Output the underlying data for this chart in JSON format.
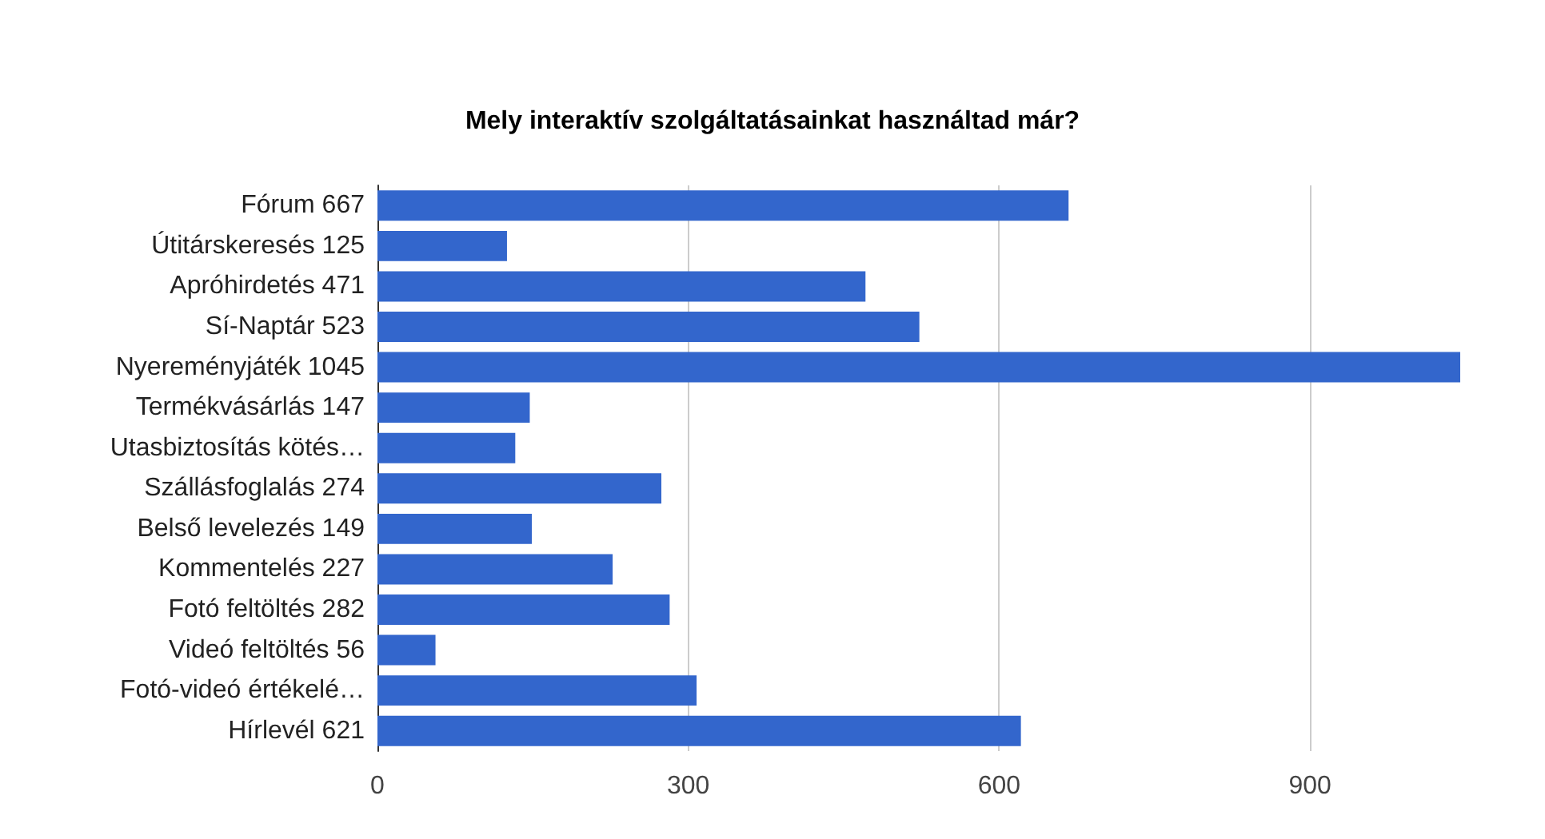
{
  "chart_data": {
    "type": "bar",
    "orientation": "horizontal",
    "title": "Mely interaktív szolgáltatásainkat használtad már?",
    "categories": [
      "Fórum 667",
      "Útitárskeresés 125",
      "Apróhirdetés 471",
      "Sí-Naptár 523",
      "Nyereményjáték 1045",
      "Termékvásárlás 147",
      "Utasbiztosítás kötés…",
      "Szállásfoglalás 274",
      "Belső levelezés 149",
      "Kommentelés 227",
      "Fotó feltöltés 282",
      "Videó feltöltés 56",
      "Fotó-videó értékelé…",
      "Hírlevél 621"
    ],
    "values": [
      667,
      125,
      471,
      523,
      1045,
      147,
      133,
      274,
      149,
      227,
      282,
      56,
      308,
      621
    ],
    "color": "#3366cc",
    "xlim": [
      0,
      1045
    ],
    "xticks": [
      0,
      300,
      600,
      900
    ],
    "grid": "x"
  }
}
